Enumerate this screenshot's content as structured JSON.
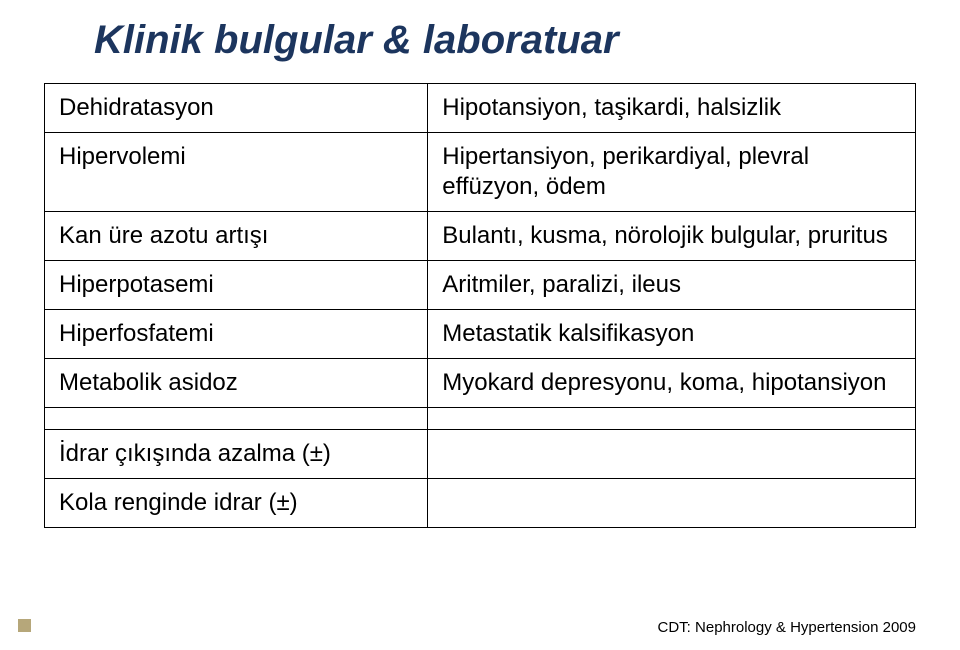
{
  "title": "Klinik bulgular & laboratuar",
  "title_color": "#1c355e",
  "title_fontsize": 40,
  "cell_fontsize": 24,
  "border_color": "#000000",
  "background_color": "#ffffff",
  "table": {
    "col_widths": [
      "44%",
      "56%"
    ],
    "rows": [
      {
        "type": "normal",
        "left": "Dehidratasyon",
        "right": "Hipotansiyon, taşikardi, halsizlik"
      },
      {
        "type": "normal",
        "left": "Hipervolemi",
        "right": "Hipertansiyon, perikardiyal, plevral effüzyon, ödem"
      },
      {
        "type": "normal",
        "left": "Kan üre azotu artışı",
        "right": "Bulantı, kusma, nörolojik bulgular, pruritus"
      },
      {
        "type": "normal",
        "left": "Hiperpotasemi",
        "right": "Aritmiler, paralizi, ileus"
      },
      {
        "type": "normal",
        "left": "Hiperfosfatemi",
        "right": "Metastatik kalsifikasyon"
      },
      {
        "type": "normal",
        "left": "Metabolik asidoz",
        "right": "Myokard depresyonu, koma, hipotansiyon"
      },
      {
        "type": "thin",
        "left": "",
        "right": ""
      },
      {
        "type": "normal",
        "left": "İdrar çıkışında azalma (±)",
        "right": ""
      },
      {
        "type": "normal",
        "left": "Kola renginde idrar (±)",
        "right": ""
      }
    ]
  },
  "footer": "CDT: Nephrology & Hypertension 2009",
  "bullet_color": "#b6a77a"
}
